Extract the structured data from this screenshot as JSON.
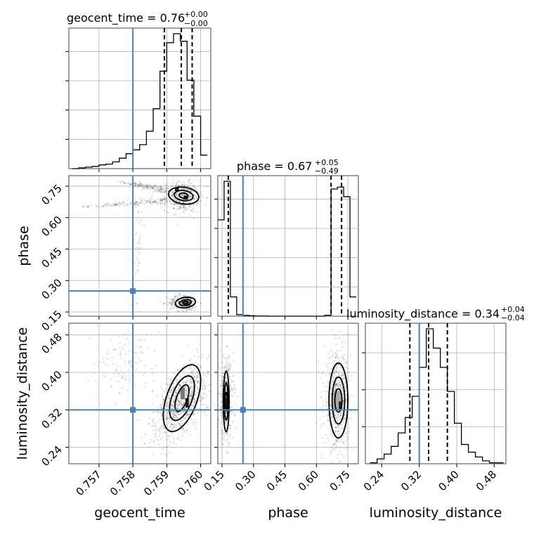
{
  "chart_data": {
    "type": "corner",
    "parameters": [
      "geocent_time",
      "phase",
      "luminosity_distance"
    ],
    "truths": {
      "geocent_time": 0.758,
      "phase": 0.25,
      "luminosity_distance": 0.32
    },
    "titles": [
      {
        "param": "geocent_time",
        "text": "geocent_time = 0.76",
        "sup": "+0.00",
        "sub": "−0.00"
      },
      {
        "param": "phase",
        "text": "phase = 0.67",
        "sup": "+0.05",
        "sub": "−0.49"
      },
      {
        "param": "luminosity_distance",
        "text": "luminosity_distance = 0.34",
        "sup": "+0.04",
        "sub": "−0.04"
      }
    ],
    "axes": {
      "geocent_time": {
        "label": "geocent_time",
        "range": [
          0.75611,
          0.7603
        ],
        "ticks": [
          0.757,
          0.758,
          0.759,
          0.76
        ],
        "tick_labels": [
          "0.757",
          "0.758",
          "0.759",
          "0.760"
        ]
      },
      "phase": {
        "label": "phase",
        "range": [
          0.13,
          0.8
        ],
        "ticks": [
          0.15,
          0.3,
          0.45,
          0.6,
          0.75
        ],
        "tick_labels": [
          "0.15",
          "0.30",
          "0.45",
          "0.60",
          "0.75"
        ]
      },
      "luminosity_distance": {
        "label": "luminosity_distance",
        "range": [
          0.205,
          0.505
        ],
        "ticks": [
          0.24,
          0.32,
          0.4,
          0.48
        ],
        "tick_labels": [
          "0.24",
          "0.32",
          "0.40",
          "0.48"
        ]
      }
    },
    "histograms": {
      "geocent_time": {
        "edges": [
          0.7562,
          0.7564,
          0.7566,
          0.7568,
          0.757,
          0.7572,
          0.7574,
          0.7576,
          0.7578,
          0.758,
          0.7582,
          0.7584,
          0.7586,
          0.7588,
          0.759,
          0.7592,
          0.7594,
          0.7596,
          0.7598,
          0.76,
          0.7602
        ],
        "counts": [
          0,
          1,
          2,
          3,
          5,
          6,
          9,
          14,
          20,
          25,
          32,
          50,
          80,
          130,
          168,
          180,
          170,
          118,
          70,
          18
        ],
        "quantiles": [
          0.75893,
          0.75943,
          0.75975
        ]
      },
      "phase": {
        "edges": [
          0.13,
          0.16,
          0.19,
          0.22,
          0.25,
          0.28,
          0.31,
          0.34,
          0.37,
          0.4,
          0.43,
          0.46,
          0.49,
          0.52,
          0.55,
          0.58,
          0.61,
          0.64,
          0.67,
          0.7,
          0.73,
          0.76,
          0.79
        ],
        "counts": [
          50,
          70,
          10,
          0.8,
          0.4,
          0.2,
          0.1,
          0.1,
          0,
          0,
          0,
          0,
          0,
          0,
          0,
          0,
          0,
          0.5,
          66,
          67,
          62,
          10
        ],
        "quantiles": [
          0.18,
          0.67,
          0.72
        ]
      },
      "luminosity_distance": {
        "edges": [
          0.215,
          0.23,
          0.245,
          0.26,
          0.275,
          0.29,
          0.305,
          0.32,
          0.335,
          0.35,
          0.365,
          0.38,
          0.395,
          0.41,
          0.425,
          0.44,
          0.455,
          0.47,
          0.485,
          0.5
        ],
        "counts": [
          1,
          5,
          10,
          18,
          32,
          48,
          70,
          100,
          140,
          120,
          100,
          75,
          42,
          20,
          12,
          7,
          3,
          1,
          1
        ],
        "quantiles": [
          0.3,
          0.34,
          0.38
        ]
      }
    }
  }
}
